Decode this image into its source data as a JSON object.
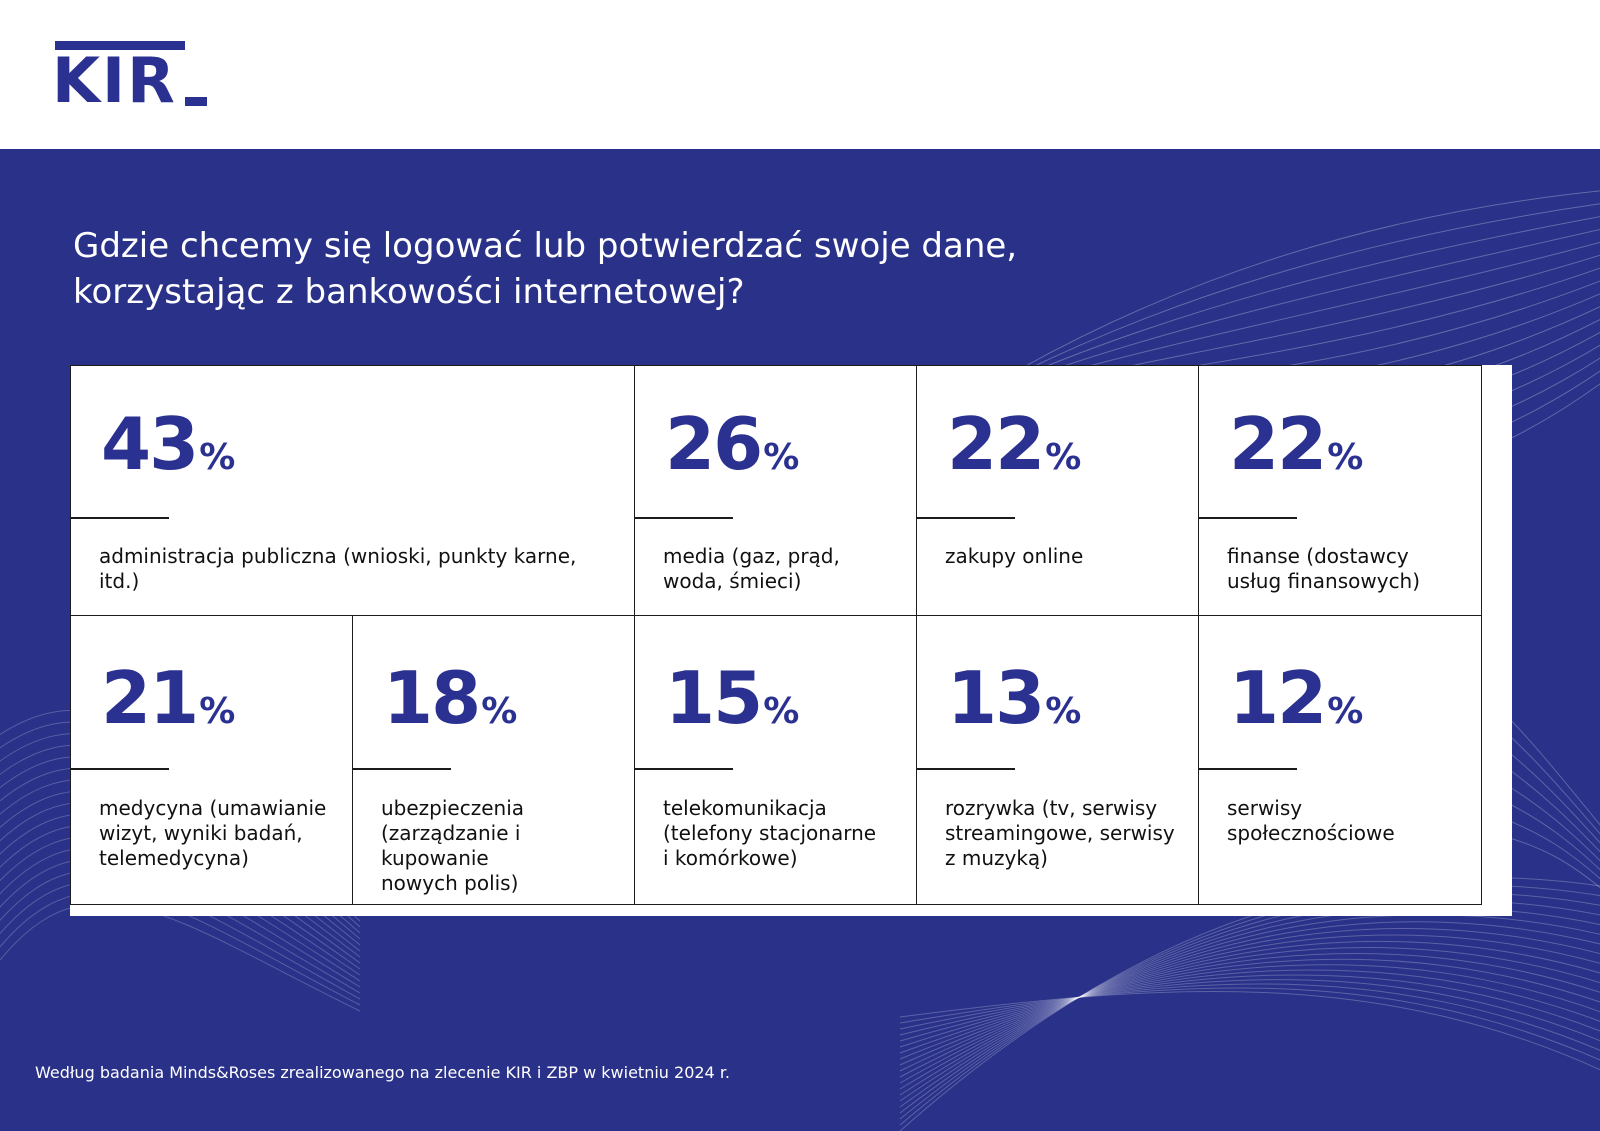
{
  "brand": {
    "logo_text": "KIR",
    "color": "#2b3190",
    "background": "#293189"
  },
  "title_line1": "Gdzie chcemy się logować lub potwierdzać swoje dane,",
  "title_line2": "korzystając z bankowości internetowej?",
  "chart_data": {
    "type": "table",
    "title": "Gdzie chcemy się logować lub potwierdzać swoje dane, korzystając z bankowości internetowej?",
    "unit": "%",
    "categories": [
      "administracja publiczna (wnioski, punkty karne, itd.)",
      "media (gaz, prąd, woda, śmieci)",
      "zakupy online",
      "finanse (dostawcy usług finansowych)",
      "medycyna (umawianie wizyt, wyniki badań, telemedycyna)",
      "ubezpieczenia (zarządzanie i kupowanie nowych polis)",
      "telekomunikacja (telefony stacjonarne i komórkowe)",
      "rozrywka (tv, serwisy streamingowe, serwisy z muzyką)",
      "serwisy społecznościowe"
    ],
    "values": [
      43,
      26,
      22,
      22,
      21,
      18,
      15,
      13,
      12
    ],
    "labels_display": [
      "administracja publiczna (wnioski, punkty karne, itd.)",
      "media (gaz, prąd,\nwoda, śmieci)",
      "zakupy online",
      "finanse (dostawcy\nusług finansowych)",
      "medycyna (umawianie\nwizyt, wyniki badań,\ntelemedycyna)",
      "ubezpieczenia\n(zarządzanie i kupowanie\nnowych polis)",
      "telekomunikacja\n(telefony stacjonarne\ni komórkowe)",
      "rozrywka (tv, serwisy\nstreamingowe, serwisy\nz muzyką)",
      "serwisy\nspołecznościowe"
    ]
  },
  "footnote": "Według badania Minds&Roses zrealizowanego na zlecenie KIR i ZBP w kwietniu 2024 r."
}
